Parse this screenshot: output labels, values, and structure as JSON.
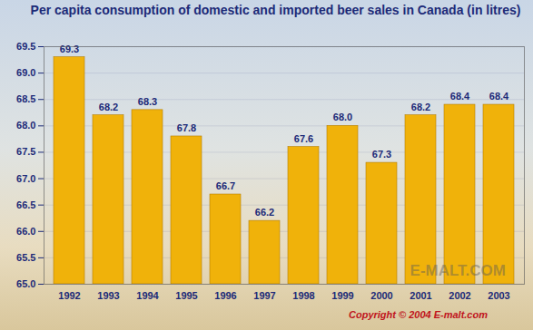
{
  "chart_data": {
    "type": "bar",
    "title": "Per capita consumption of domestic and imported beer sales in Canada (in litres)",
    "categories": [
      "1992",
      "1993",
      "1994",
      "1995",
      "1996",
      "1997",
      "1998",
      "1999",
      "2000",
      "2001",
      "2002",
      "2003"
    ],
    "values": [
      69.3,
      68.2,
      68.3,
      67.8,
      66.7,
      66.2,
      67.6,
      68.0,
      67.3,
      68.2,
      68.4,
      68.4
    ],
    "value_labels": [
      "69.3",
      "68.2",
      "68.3",
      "67.8",
      "66.7",
      "66.2",
      "67.6",
      "68.0",
      "67.3",
      "68.2",
      "68.4",
      "68.4"
    ],
    "color": "#f0b20a",
    "ylim": [
      65,
      69.5
    ],
    "yticks": [
      {
        "value": 65,
        "label": "65.0"
      },
      {
        "value": 65.5,
        "label": "65.5"
      },
      {
        "value": 66,
        "label": "66.0"
      },
      {
        "value": 66.5,
        "label": "66.5"
      },
      {
        "value": 67,
        "label": "67.0"
      },
      {
        "value": 67.5,
        "label": "67.5"
      },
      {
        "value": 68,
        "label": "68.0"
      },
      {
        "value": 68.5,
        "label": "68.5"
      },
      {
        "value": 69,
        "label": "69.0"
      },
      {
        "value": 69.5,
        "label": "69.5"
      }
    ],
    "grid": true,
    "data_labels": true,
    "watermark": "E-MALT.COM",
    "caption": "Copyright © 2004 E-malt.com"
  }
}
